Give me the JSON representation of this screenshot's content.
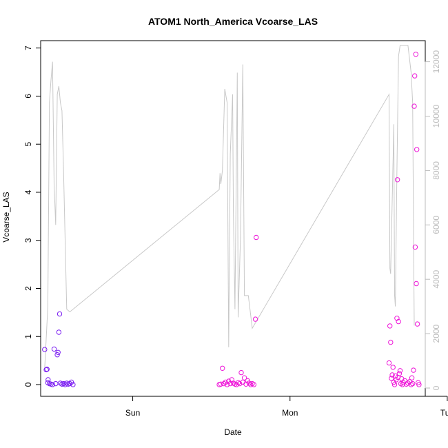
{
  "chart_data": {
    "type": "scatter",
    "title": "ATOM1 North_America Vcoarse_LAS",
    "xlabel": "Date",
    "ylabel": "Vcoarse_LAS",
    "x_ticks": [
      "Sun",
      "Mon",
      "Tue"
    ],
    "y_ticks": [
      "0",
      "1",
      "2",
      "3",
      "4",
      "5",
      "6",
      "7"
    ],
    "y2_ticks": [
      "0",
      "2000",
      "4000",
      "6000",
      "8000",
      "10000",
      "12000"
    ],
    "ylim": [
      0,
      7
    ],
    "y2lim": [
      0,
      12700
    ],
    "grid": false,
    "x_unit": "days since Saturday 00:00",
    "colors": {
      "early_points": "#7a1cf2",
      "late_points": "#ee14d8",
      "secondary_line": "#c8c8c8",
      "axis": "#000000",
      "axis_right": "#bbbbbb"
    },
    "series": [
      {
        "axis": "left",
        "kind": "points",
        "points": [
          [
            0.44,
            0.73
          ],
          [
            0.45,
            0.31
          ],
          [
            0.455,
            0.32
          ],
          [
            0.46,
            0.04
          ],
          [
            0.462,
            0.1
          ],
          [
            0.47,
            0.02
          ],
          [
            0.48,
            0.01
          ],
          [
            0.49,
            0.0
          ],
          [
            0.5,
            0.74
          ],
          [
            0.51,
            0.02
          ],
          [
            0.52,
            0.62
          ],
          [
            0.525,
            0.67
          ],
          [
            0.53,
            1.09
          ],
          [
            0.535,
            1.47
          ],
          [
            0.54,
            0.03
          ],
          [
            0.55,
            0.01
          ],
          [
            0.56,
            0.02
          ],
          [
            0.57,
            0.0
          ],
          [
            0.58,
            0.03
          ],
          [
            0.59,
            0.01
          ],
          [
            0.6,
            0.02
          ],
          [
            0.61,
            0.05
          ],
          [
            0.62,
            0.0
          ],
          [
            1.55,
            0.0
          ],
          [
            1.56,
            0.01
          ],
          [
            1.57,
            0.34
          ],
          [
            1.58,
            0.02
          ],
          [
            1.59,
            0.05
          ],
          [
            1.6,
            0.0
          ],
          [
            1.61,
            0.07
          ],
          [
            1.62,
            0.02
          ],
          [
            1.63,
            0.1
          ],
          [
            1.64,
            0.03
          ],
          [
            1.65,
            0.01
          ],
          [
            1.66,
            0.0
          ],
          [
            1.67,
            0.04
          ],
          [
            1.68,
            0.02
          ],
          [
            1.69,
            0.25
          ],
          [
            1.7,
            0.05
          ],
          [
            1.71,
            0.14
          ],
          [
            1.72,
            0.01
          ],
          [
            1.73,
            0.08
          ],
          [
            1.74,
            0.03
          ],
          [
            1.75,
            0.0
          ],
          [
            1.76,
            0.02
          ],
          [
            1.77,
            0.0
          ],
          [
            1.78,
            1.36
          ],
          [
            1.785,
            3.06
          ],
          [
            2.63,
            0.45
          ],
          [
            2.635,
            1.22
          ],
          [
            2.64,
            0.88
          ],
          [
            2.645,
            0.13
          ],
          [
            2.65,
            0.2
          ],
          [
            2.655,
            0.36
          ],
          [
            2.66,
            0.05
          ],
          [
            2.665,
            0.0
          ],
          [
            2.67,
            0.18
          ],
          [
            2.675,
            0.1
          ],
          [
            2.68,
            1.38
          ],
          [
            2.683,
            4.26
          ],
          [
            2.686,
            0.15
          ],
          [
            2.69,
            1.31
          ],
          [
            2.695,
            0.23
          ],
          [
            2.7,
            0.29
          ],
          [
            2.705,
            0.02
          ],
          [
            2.71,
            0.12
          ],
          [
            2.715,
            0.0
          ],
          [
            2.72,
            0.04
          ],
          [
            2.73,
            0.08
          ],
          [
            2.74,
            0.01
          ],
          [
            2.75,
            0.03
          ],
          [
            2.76,
            0.06
          ],
          [
            2.77,
            0.0
          ],
          [
            2.775,
            0.14
          ],
          [
            2.78,
            0.02
          ],
          [
            2.785,
            0.3
          ],
          [
            2.79,
            5.79
          ],
          [
            2.793,
            6.42
          ],
          [
            2.796,
            2.86
          ],
          [
            2.8,
            6.87
          ],
          [
            2.803,
            2.1
          ],
          [
            2.806,
            4.89
          ],
          [
            2.81,
            1.26
          ],
          [
            2.815,
            0.04
          ],
          [
            2.82,
            0.0
          ]
        ]
      },
      {
        "axis": "right",
        "kind": "line",
        "points": [
          [
            0.44,
            700
          ],
          [
            0.46,
            3000
          ],
          [
            0.47,
            10500
          ],
          [
            0.48,
            11300
          ],
          [
            0.49,
            12000
          ],
          [
            0.5,
            7500
          ],
          [
            0.51,
            6000
          ],
          [
            0.52,
            10800
          ],
          [
            0.53,
            11100
          ],
          [
            0.54,
            10500
          ],
          [
            0.55,
            10200
          ],
          [
            0.56,
            8000
          ],
          [
            0.58,
            2900
          ],
          [
            0.6,
            2800
          ],
          [
            1.55,
            7300
          ],
          [
            1.555,
            7900
          ],
          [
            1.56,
            7500
          ],
          [
            1.57,
            8000
          ],
          [
            1.585,
            11000
          ],
          [
            1.6,
            10500
          ],
          [
            1.61,
            1500
          ],
          [
            1.62,
            8600
          ],
          [
            1.635,
            10800
          ],
          [
            1.64,
            6500
          ],
          [
            1.65,
            2900
          ],
          [
            1.665,
            11600
          ],
          [
            1.67,
            2600
          ],
          [
            1.685,
            5500
          ],
          [
            1.7,
            11900
          ],
          [
            1.71,
            3400
          ],
          [
            1.72,
            3400
          ],
          [
            1.735,
            3400
          ],
          [
            1.76,
            2200
          ],
          [
            2.63,
            10800
          ],
          [
            2.635,
            4400
          ],
          [
            2.64,
            4200
          ],
          [
            2.66,
            9700
          ],
          [
            2.665,
            3400
          ],
          [
            2.67,
            3000
          ],
          [
            2.68,
            8000
          ],
          [
            2.69,
            12200
          ],
          [
            2.7,
            12600
          ],
          [
            2.71,
            12600
          ],
          [
            2.73,
            12600
          ],
          [
            2.75,
            12600
          ],
          [
            2.77,
            11600
          ],
          [
            2.78,
            10500
          ],
          [
            2.79,
            2300
          ]
        ]
      }
    ]
  }
}
